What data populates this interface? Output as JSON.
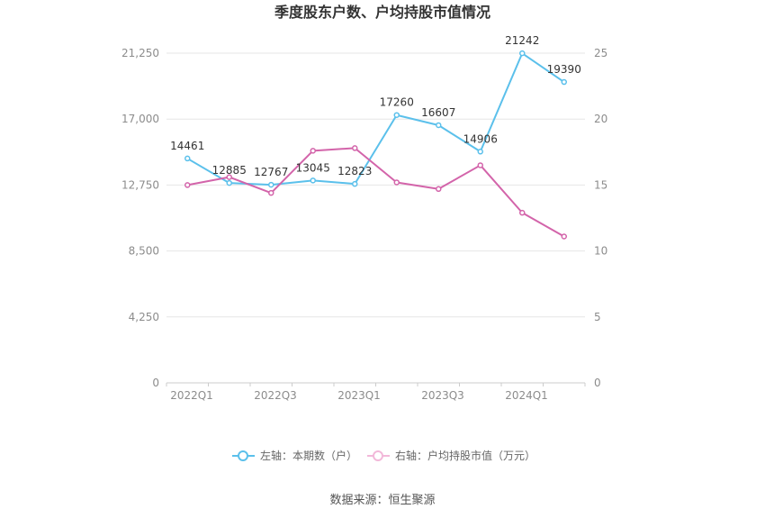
{
  "chart_data": {
    "type": "line",
    "title": "季度股东户数、户均持股市值情况",
    "categories": [
      "2022Q1",
      "2022Q2",
      "2022Q3",
      "2022Q4",
      "2023Q1",
      "2023Q2",
      "2023Q3",
      "2023Q4",
      "2024Q1",
      "2024Q2"
    ],
    "x_tick_labels": [
      "2022Q1",
      "2022Q3",
      "2023Q1",
      "2023Q3",
      "2024Q1"
    ],
    "left_axis": {
      "ticks": [
        "0",
        "4,250",
        "8,500",
        "12,750",
        "17,000",
        "21,250"
      ],
      "ylim": [
        0,
        21250
      ]
    },
    "right_axis": {
      "ticks": [
        "0",
        "5",
        "10",
        "15",
        "20",
        "25"
      ],
      "ylim": [
        0,
        25
      ]
    },
    "series": [
      {
        "name": "左轴：本期数（户）",
        "axis": "left",
        "color": "#5bc0eb",
        "values": [
          14461,
          12885,
          12767,
          13045,
          12823,
          17260,
          16607,
          14906,
          21242,
          19390
        ],
        "labels": [
          "14461",
          "12885",
          "12767",
          "13045",
          "12823",
          "17260",
          "16607",
          "14906",
          "21242",
          "19390"
        ]
      },
      {
        "name": "右轴：户均持股市值（万元）",
        "axis": "right",
        "color": "#d364aa",
        "values": [
          15.0,
          15.6,
          14.4,
          17.6,
          17.8,
          15.2,
          14.7,
          16.5,
          12.9,
          11.1
        ]
      }
    ],
    "grid": true,
    "legend": "bottom"
  },
  "source": "数据来源：恒生聚源"
}
